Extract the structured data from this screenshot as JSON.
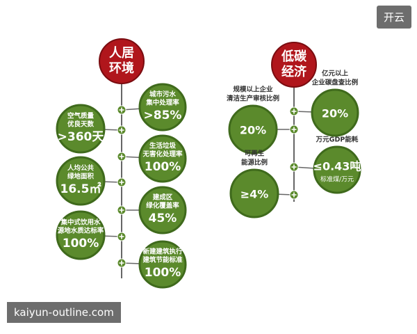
{
  "watermark": "开云",
  "footer": "kaiyun-outline.com",
  "left_tree": {
    "title": [
      "人居",
      "环境"
    ],
    "nodes": [
      {
        "label": [
          "城市污水",
          "集中处理率"
        ],
        "value": ">85%"
      },
      {
        "label": [
          "空气质量",
          "优良天数"
        ],
        "value": ">360天"
      },
      {
        "label": [
          "生活垃圾",
          "无害化处理率"
        ],
        "value": "100%"
      },
      {
        "label": [
          "人均公共",
          "绿地面积"
        ],
        "value": "16.5㎡"
      },
      {
        "label": [
          "建成区",
          "绿化覆盖率"
        ],
        "value": "45%"
      },
      {
        "label": [
          "集中式饮用水",
          "源地水质达标率"
        ],
        "value": "100%"
      },
      {
        "label": [
          "新建建筑执行",
          "建筑节能标准"
        ],
        "value": "100%"
      }
    ]
  },
  "right_tree": {
    "title": [
      "低碳",
      "经济"
    ],
    "nodes": [
      {
        "label": [
          "亿元以上",
          "企业碳盘查比例"
        ],
        "value": "20%"
      },
      {
        "label": [
          "规模以上企业",
          "清洁生产审核比例"
        ],
        "value": "20%"
      },
      {
        "label": [
          "万元GDP能耗"
        ],
        "value": "≤0.43吨",
        "unit": "标准煤/万元"
      },
      {
        "label": [
          "可再生",
          "能源比例"
        ],
        "value": "≥4%"
      }
    ]
  }
}
